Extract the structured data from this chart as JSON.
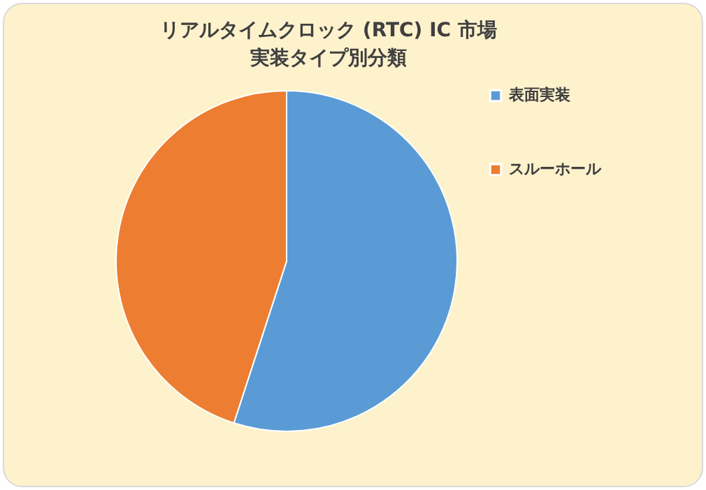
{
  "chart_data": {
    "type": "pie",
    "title": "リアルタイムクロック (RTC) IC 市場",
    "subtitle": "実装タイプ別分類",
    "categories": [
      "表面実装",
      "スルーホール"
    ],
    "values": [
      55,
      45
    ],
    "colors": [
      "#5b9bd5",
      "#ed7d31"
    ],
    "legend": "right"
  }
}
